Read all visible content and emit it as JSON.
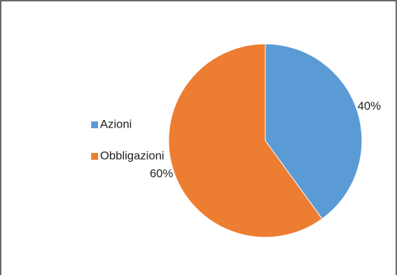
{
  "chart_data": {
    "type": "pie",
    "categories": [
      "Azioni",
      "Obbligazioni"
    ],
    "values": [
      40,
      60
    ],
    "value_labels": [
      "40%",
      "60%"
    ],
    "colors": [
      "#5b9bd5",
      "#ed7d31"
    ],
    "legend": "left"
  }
}
